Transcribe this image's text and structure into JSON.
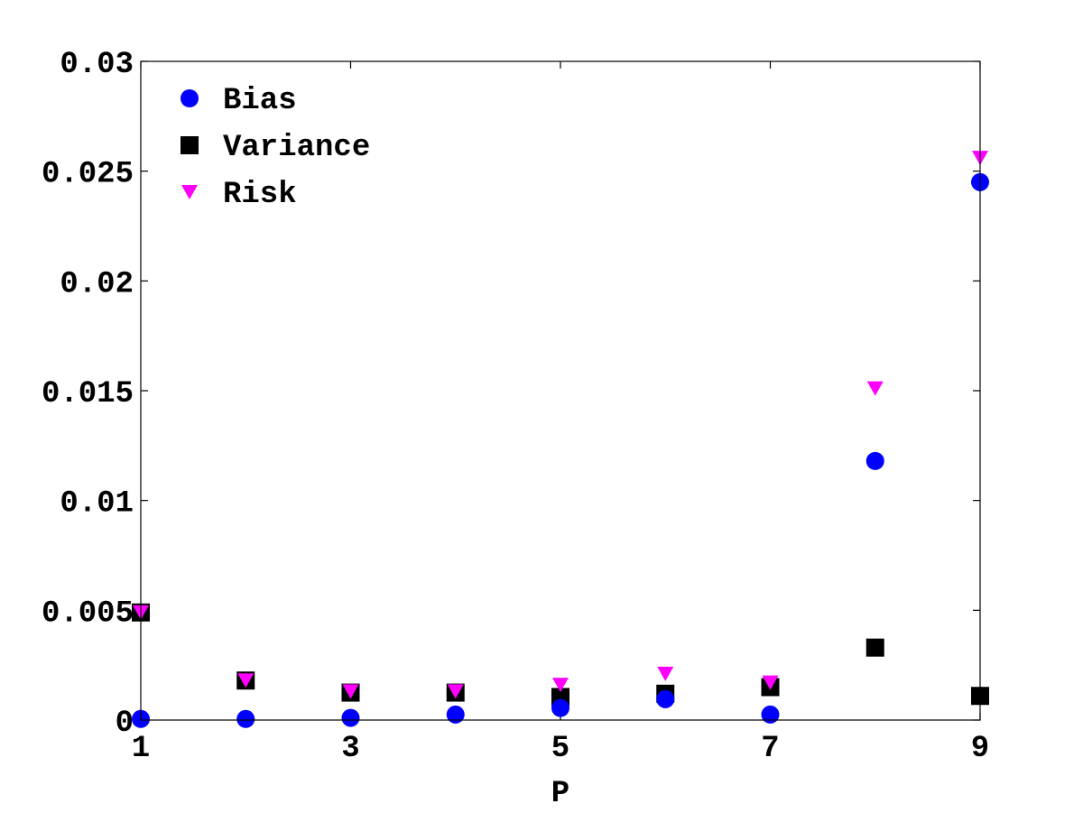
{
  "chart_data": {
    "type": "scatter",
    "title": "",
    "xlabel": "P",
    "ylabel": "",
    "xlim": [
      1,
      9
    ],
    "ylim": [
      0,
      0.03
    ],
    "x_ticks": [
      1,
      3,
      5,
      7,
      9
    ],
    "x_tick_labels": [
      "1",
      "3",
      "5",
      "7",
      "9"
    ],
    "y_ticks": [
      0,
      0.005,
      0.01,
      0.015,
      0.02,
      0.025,
      0.03
    ],
    "y_tick_labels": [
      "0",
      "0.005",
      "0.01",
      "0.015",
      "0.02",
      "0.025",
      "0.03"
    ],
    "grid": false,
    "legend_position": "top-left",
    "x": [
      1,
      2,
      3,
      4,
      5,
      6,
      7,
      8,
      9
    ],
    "series": [
      {
        "name": "Bias",
        "marker": "circle",
        "color": "#0000ff",
        "values": [
          5e-05,
          5e-05,
          0.0001,
          0.00025,
          0.00055,
          0.00095,
          0.00025,
          0.0118,
          0.0245
        ]
      },
      {
        "name": "Variance",
        "marker": "square",
        "color": "#000000",
        "values": [
          0.0049,
          0.0018,
          0.00125,
          0.00125,
          0.00105,
          0.0012,
          0.0015,
          0.0033,
          0.0011
        ]
      },
      {
        "name": "Risk",
        "marker": "triangle-down",
        "color": "#ff00ff",
        "values": [
          0.0049,
          0.0018,
          0.0013,
          0.0013,
          0.0016,
          0.0021,
          0.0017,
          0.0151,
          0.0256
        ]
      }
    ]
  }
}
